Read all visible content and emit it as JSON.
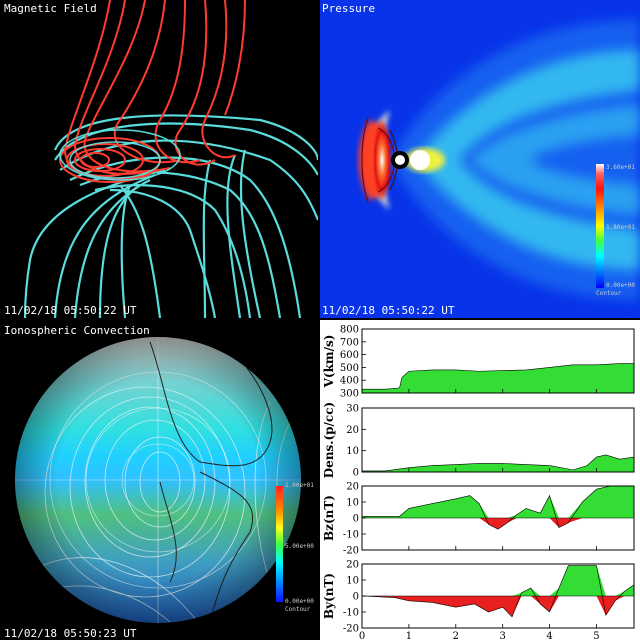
{
  "magnetic": {
    "title": "Magnetic Field",
    "timestamp": "11/02/18 05:50:22 UT"
  },
  "pressure": {
    "title": "Pressure",
    "timestamp": "11/02/18 05:50:22 UT",
    "colorbar": {
      "max": "3.60e+01",
      "mid": "1.80e+01",
      "min": "0.00e+00",
      "label": "Contour"
    }
  },
  "ionosphere": {
    "title": "Ionospheric Convection",
    "timestamp": "11/02/18 05:50:23 UT",
    "colorbar": {
      "max": "1.00e+01",
      "mid": "5.00e+00",
      "min": "0.00e+00",
      "label": "Contour"
    }
  },
  "chart_data": {
    "type": "area",
    "x_ticks": [
      "0",
      "1",
      "2",
      "3",
      "4",
      "5"
    ],
    "xlim": [
      0,
      5.8
    ],
    "panels": [
      {
        "ylabel": "V(km/s)",
        "ylim": [
          300,
          800
        ],
        "ticks": [
          "800",
          "700",
          "600",
          "500",
          "400",
          "300"
        ],
        "baseline": 300,
        "x": [
          0,
          0.5,
          0.8,
          0.85,
          1.0,
          1.5,
          2.0,
          2.5,
          3.0,
          3.5,
          4.0,
          4.5,
          5.0,
          5.5,
          5.8
        ],
        "values": [
          330,
          330,
          340,
          420,
          470,
          480,
          480,
          470,
          475,
          480,
          500,
          520,
          520,
          530,
          530
        ]
      },
      {
        "ylabel": "Dens.(p/cc)",
        "ylim": [
          0,
          30
        ],
        "ticks": [
          "30",
          "20",
          "10",
          "0"
        ],
        "baseline": 0,
        "x": [
          0,
          0.5,
          1.0,
          1.5,
          2.0,
          2.5,
          3.0,
          3.5,
          4.0,
          4.5,
          4.8,
          5.0,
          5.2,
          5.5,
          5.8
        ],
        "values": [
          0.5,
          0.5,
          2,
          3,
          3.5,
          4,
          4,
          3.5,
          3,
          1,
          3,
          7,
          8,
          6,
          7
        ]
      },
      {
        "ylabel": "Bz(nT)",
        "ylim": [
          -20,
          20
        ],
        "ticks": [
          "20",
          "10",
          "0",
          "-10",
          "-20"
        ],
        "baseline": 0,
        "x": [
          0,
          0.8,
          1.0,
          1.5,
          2.0,
          2.3,
          2.5,
          2.7,
          2.9,
          3.1,
          3.3,
          3.5,
          3.8,
          4.0,
          4.2,
          4.4,
          4.7,
          5.0,
          5.3,
          5.8
        ],
        "values": [
          1,
          1,
          6,
          9,
          12,
          14,
          9,
          -4,
          -7,
          -3,
          2,
          6,
          3,
          14,
          -6,
          -3,
          10,
          18,
          20,
          20
        ]
      },
      {
        "ylabel": "By(nT)",
        "ylim": [
          -20,
          20
        ],
        "ticks": [
          "20",
          "10",
          "0",
          "-10",
          "-20"
        ],
        "baseline": 0,
        "x": [
          0,
          0.7,
          1.0,
          1.5,
          2.0,
          2.4,
          2.7,
          3.0,
          3.2,
          3.4,
          3.6,
          3.8,
          4.0,
          4.2,
          4.4,
          4.8,
          5.0,
          5.2,
          5.4,
          5.6,
          5.8
        ],
        "values": [
          0,
          -1,
          -3,
          -4,
          -7,
          -5,
          -10,
          -7,
          -13,
          2,
          5,
          -5,
          -10,
          5,
          19,
          19,
          19,
          -12,
          -3,
          3,
          7
        ]
      }
    ]
  }
}
